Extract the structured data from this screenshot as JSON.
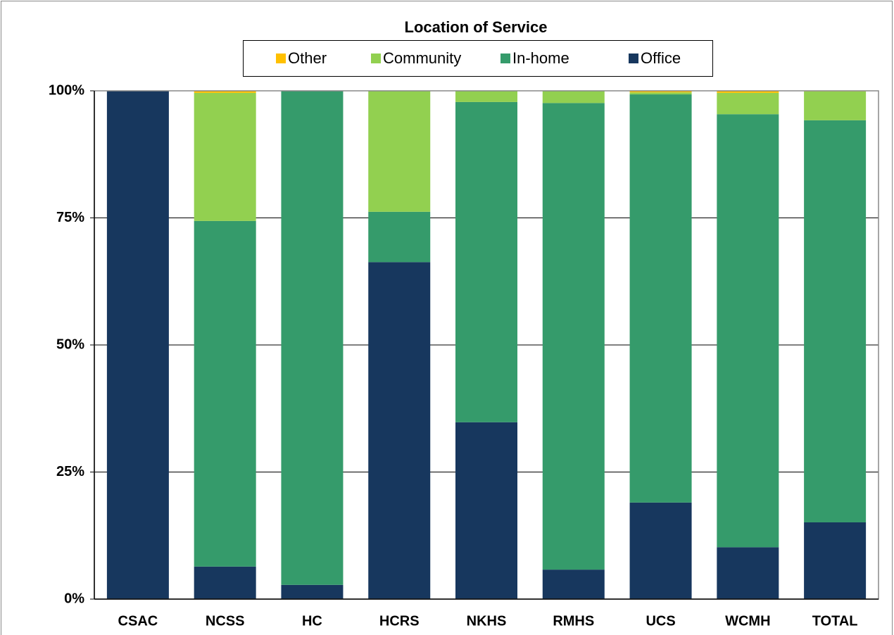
{
  "chart_data": {
    "type": "stacked_bar",
    "title": "Location of Service",
    "categories": [
      "CSAC",
      "NCSS",
      "HC",
      "HCRS",
      "NKHS",
      "RMHS",
      "UCS",
      "WCMH",
      "TOTAL"
    ],
    "series": [
      {
        "name": "Office",
        "color": "#17375e",
        "values": [
          100,
          6.4,
          2.8,
          66.3,
          34.8,
          5.8,
          19.0,
          10.2,
          15.1
        ]
      },
      {
        "name": "In-home",
        "color": "#359b6b",
        "values": [
          0,
          68.0,
          97.2,
          9.9,
          63.0,
          91.8,
          80.3,
          85.2,
          79.1
        ]
      },
      {
        "name": "Community",
        "color": "#92d050",
        "values": [
          0,
          25.2,
          0,
          23.8,
          2.2,
          2.4,
          0.4,
          4.2,
          5.7
        ]
      },
      {
        "name": "Other",
        "color": "#ffc000",
        "values": [
          0,
          0.4,
          0,
          0,
          0,
          0,
          0.3,
          0.4,
          0.1
        ]
      }
    ],
    "ylim": [
      0,
      100
    ],
    "yticks": [
      {
        "value": 0,
        "label": "0%"
      },
      {
        "value": 25,
        "label": "25%"
      },
      {
        "value": 50,
        "label": "50%"
      },
      {
        "value": 75,
        "label": "75%"
      },
      {
        "value": 100,
        "label": "100%"
      }
    ],
    "grid": true,
    "legend": "top"
  }
}
